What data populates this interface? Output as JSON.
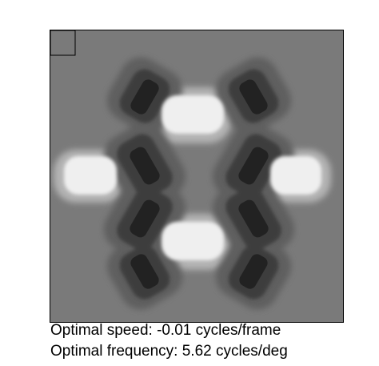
{
  "figure": {
    "background_gray": "#7a7a7a",
    "border_color": "#000000",
    "light_blob_color": "#efefef",
    "light_halo_color": "#b4b4b4",
    "dark_blob_color": "#3c3c3c",
    "darker_core_color": "#222222",
    "mid_halo_color": "#5e5e5e"
  },
  "captions": {
    "speed": "Optimal speed: -0.01 cycles/frame",
    "frequency": "Optimal frequency: 5.62 cycles/deg"
  }
}
